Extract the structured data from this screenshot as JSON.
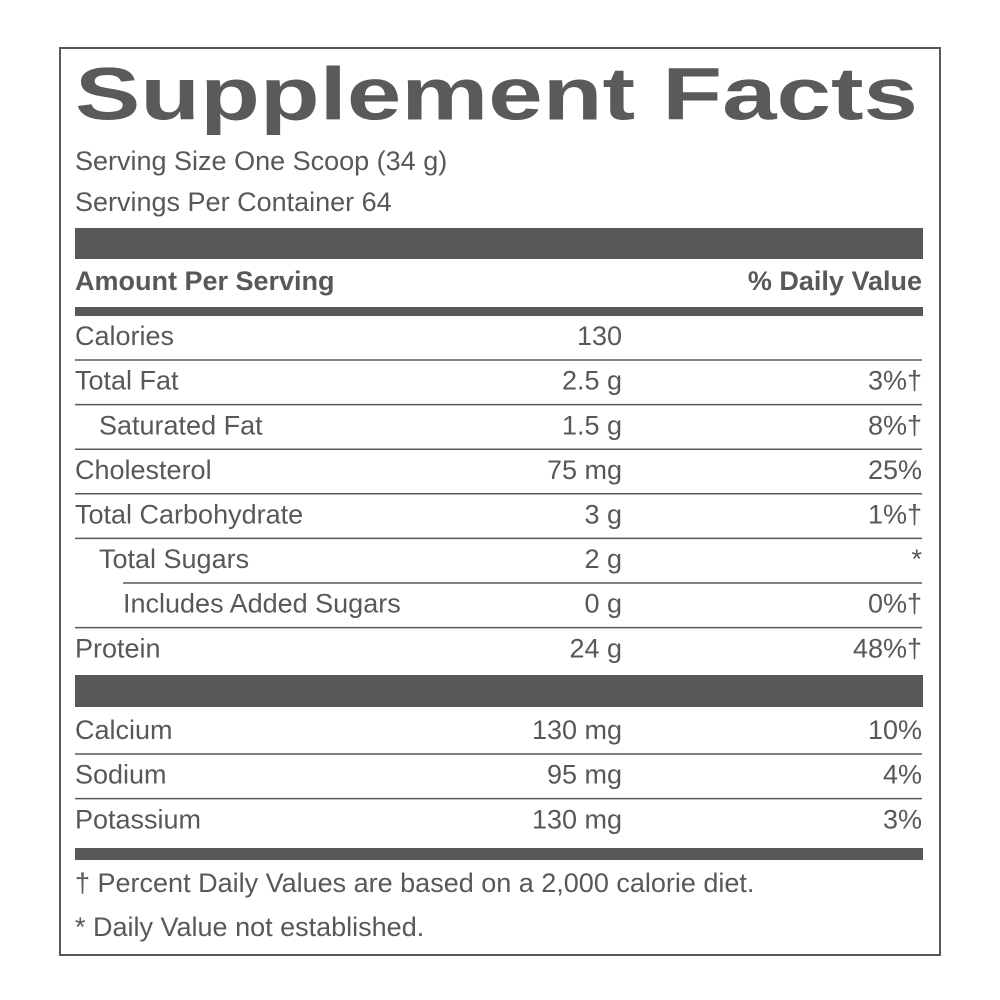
{
  "header": {
    "title": "Supplement Facts",
    "serving_size": "Serving Size One Scoop (34 g)",
    "servings_per_container": "Servings Per Container 64"
  },
  "table": {
    "columns": [
      "Amount Per Serving",
      "% Daily Value"
    ],
    "rows": [
      [
        "Calories",
        "130"
      ],
      [
        "Total Fat",
        "2.5 g",
        "3%†"
      ],
      [
        "Saturated Fat",
        "1.5 g",
        "8%†"
      ],
      [
        "Cholesterol",
        "75 mg",
        "25%"
      ],
      [
        "Total Carbohydrate",
        "3 g",
        "1%†"
      ],
      [
        "Total Sugars",
        "2 g",
        "*"
      ],
      [
        "Includes Added Sugars",
        "0 g",
        "0%†"
      ],
      [
        "Protein",
        "24 g",
        "48%†"
      ]
    ],
    "minerals": [
      [
        "Calcium",
        "130 mg",
        "10%"
      ],
      [
        "Sodium",
        "95 mg",
        "4%"
      ],
      [
        "Potassium",
        "130 mg",
        "3%"
      ]
    ]
  },
  "footnotes": [
    "† Percent Daily Values are based on a 2,000 calorie diet.",
    "* Daily Value not established."
  ]
}
